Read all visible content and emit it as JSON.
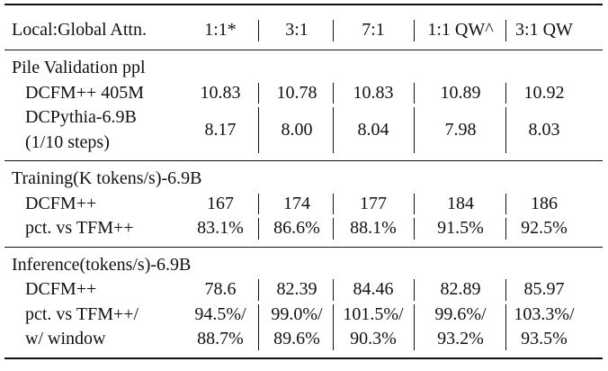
{
  "table": {
    "header": [
      "Local:Global Attn.",
      "1:1*",
      "3:1",
      "7:1",
      "1:1 QW^",
      "3:1 QW"
    ],
    "sections": [
      {
        "title": "Pile Validation ppl",
        "rows": [
          {
            "label": [
              "DCFM++ 405M"
            ],
            "cells": [
              [
                "10.83"
              ],
              [
                "10.78"
              ],
              [
                "10.83"
              ],
              [
                "10.89"
              ],
              [
                "10.92"
              ]
            ]
          },
          {
            "label": [
              "DCPythia-6.9B",
              "(1/10 steps)"
            ],
            "cells": [
              [
                "8.17"
              ],
              [
                "8.00"
              ],
              [
                "8.04"
              ],
              [
                "7.98"
              ],
              [
                "8.03"
              ]
            ]
          }
        ]
      },
      {
        "title": "Training(K tokens/s)-6.9B",
        "rows": [
          {
            "label": [
              "DCFM++"
            ],
            "cells": [
              [
                "167"
              ],
              [
                "174"
              ],
              [
                "177"
              ],
              [
                "184"
              ],
              [
                "186"
              ]
            ]
          },
          {
            "label": [
              "pct. vs TFM++"
            ],
            "cells": [
              [
                "83.1%"
              ],
              [
                "86.6%"
              ],
              [
                "88.1%"
              ],
              [
                "91.5%"
              ],
              [
                "92.5%"
              ]
            ]
          }
        ]
      },
      {
        "title": "Inference(tokens/s)-6.9B",
        "rows": [
          {
            "label": [
              "DCFM++"
            ],
            "cells": [
              [
                "78.6"
              ],
              [
                "82.39"
              ],
              [
                "84.46"
              ],
              [
                "82.89"
              ],
              [
                "85.97"
              ]
            ]
          },
          {
            "label": [
              "pct. vs TFM++/",
              "w/ window"
            ],
            "cells": [
              [
                "94.5%/",
                "88.7%"
              ],
              [
                "99.0%/",
                "89.6%"
              ],
              [
                "101.5%/",
                "90.3%"
              ],
              [
                "99.6%/",
                "93.2%"
              ],
              [
                "103.3%/",
                "93.5%"
              ]
            ]
          }
        ]
      }
    ]
  }
}
